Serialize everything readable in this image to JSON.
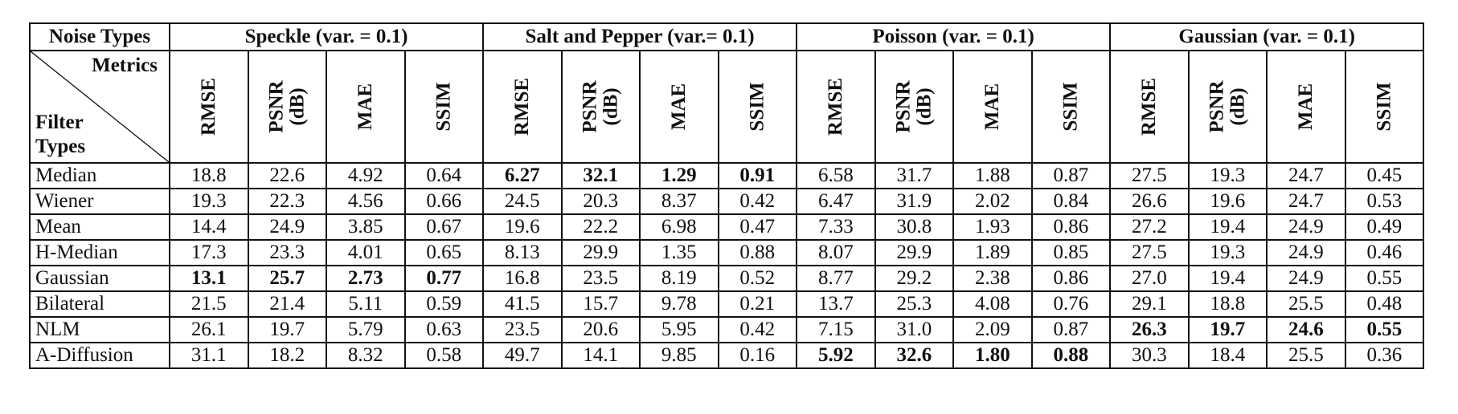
{
  "header": {
    "corner_metrics": "Metrics",
    "corner_filter": "Filter\nTypes",
    "noise_types_label": "Noise Types",
    "groups": [
      "Speckle (var. = 0.1)",
      "Salt and Pepper (var.= 0.1)",
      "Poisson (var. = 0.1)",
      "Gaussian (var. = 0.1)"
    ],
    "metrics": [
      "RMSE",
      "PSNR\n(dB)",
      "MAE",
      "SSIM"
    ]
  },
  "rows": [
    {
      "filter": "Median",
      "values": [
        "18.8",
        "22.6",
        "4.92",
        "0.64",
        "6.27",
        "32.1",
        "1.29",
        "0.91",
        "6.58",
        "31.7",
        "1.88",
        "0.87",
        "27.5",
        "19.3",
        "24.7",
        "0.45"
      ],
      "bold": [
        4,
        5,
        6,
        7
      ]
    },
    {
      "filter": "Wiener",
      "values": [
        "19.3",
        "22.3",
        "4.56",
        "0.66",
        "24.5",
        "20.3",
        "8.37",
        "0.42",
        "6.47",
        "31.9",
        "2.02",
        "0.84",
        "26.6",
        "19.6",
        "24.7",
        "0.53"
      ],
      "bold": []
    },
    {
      "filter": "Mean",
      "values": [
        "14.4",
        "24.9",
        "3.85",
        "0.67",
        "19.6",
        "22.2",
        "6.98",
        "0.47",
        "7.33",
        "30.8",
        "1.93",
        "0.86",
        "27.2",
        "19.4",
        "24.9",
        "0.49"
      ],
      "bold": []
    },
    {
      "filter": "H-Median",
      "values": [
        "17.3",
        "23.3",
        "4.01",
        "0.65",
        "8.13",
        "29.9",
        "1.35",
        "0.88",
        "8.07",
        "29.9",
        "1.89",
        "0.85",
        "27.5",
        "19.3",
        "24.9",
        "0.46"
      ],
      "bold": []
    },
    {
      "filter": "Gaussian",
      "values": [
        "13.1",
        "25.7",
        "2.73",
        "0.77",
        "16.8",
        "23.5",
        "8.19",
        "0.52",
        "8.77",
        "29.2",
        "2.38",
        "0.86",
        "27.0",
        "19.4",
        "24.9",
        "0.55"
      ],
      "bold": [
        0,
        1,
        2,
        3
      ]
    },
    {
      "filter": "Bilateral",
      "values": [
        "21.5",
        "21.4",
        "5.11",
        "0.59",
        "41.5",
        "15.7",
        "9.78",
        "0.21",
        "13.7",
        "25.3",
        "4.08",
        "0.76",
        "29.1",
        "18.8",
        "25.5",
        "0.48"
      ],
      "bold": []
    },
    {
      "filter": "NLM",
      "values": [
        "26.1",
        "19.7",
        "5.79",
        "0.63",
        "23.5",
        "20.6",
        "5.95",
        "0.42",
        "7.15",
        "31.0",
        "2.09",
        "0.87",
        "26.3",
        "19.7",
        "24.6",
        "0.55"
      ],
      "bold": [
        12,
        13,
        14,
        15
      ]
    },
    {
      "filter": "A-Diffusion",
      "values": [
        "31.1",
        "18.2",
        "8.32",
        "0.58",
        "49.7",
        "14.1",
        "9.85",
        "0.16",
        "5.92",
        "32.6",
        "1.80",
        "0.88",
        "30.3",
        "18.4",
        "25.5",
        "0.36"
      ],
      "bold": [
        8,
        9,
        10,
        11
      ]
    }
  ]
}
